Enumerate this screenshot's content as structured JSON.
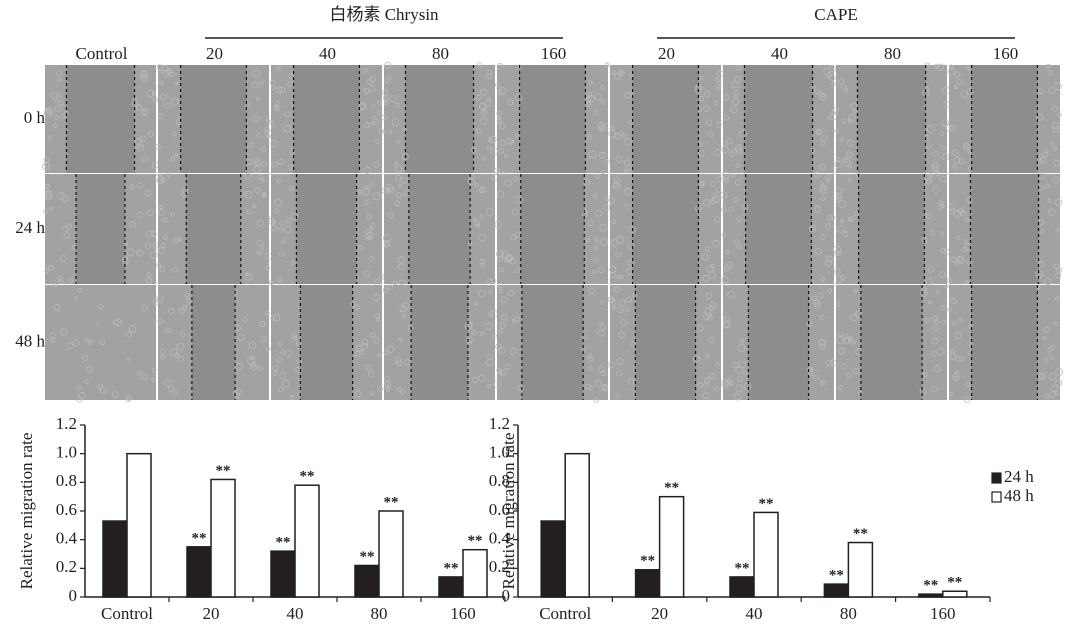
{
  "image_grid": {
    "group_labels": [
      "白杨素 Chrysin",
      "CAPE"
    ],
    "column_labels": [
      "Control",
      "20",
      "40",
      "80",
      "160",
      "20",
      "40",
      "80",
      "160"
    ],
    "row_labels": [
      "0 h",
      "24 h",
      "48 h"
    ]
  },
  "chart_data": [
    {
      "type": "bar",
      "ylabel": "Relative migration rate",
      "categories": [
        "Control",
        "20",
        "40",
        "80",
        "160"
      ],
      "series": [
        {
          "color": "#231f20",
          "values": [
            0.53,
            0.35,
            0.32,
            0.22,
            0.14
          ],
          "significance": [
            null,
            "**",
            "**",
            "**",
            "**"
          ]
        },
        {
          "color": "#ffffff",
          "values": [
            1.0,
            0.82,
            0.78,
            0.6,
            0.33
          ],
          "significance": [
            null,
            "**",
            "**",
            "**",
            "**"
          ]
        }
      ],
      "ylim": [
        0,
        1.2
      ],
      "yticks": [
        0,
        0.2,
        0.4,
        0.6,
        0.8,
        {
          "value": 1,
          "label": "1.0"
        },
        1.2
      ]
    },
    {
      "type": "bar",
      "ylabel": "Relative migration rate",
      "categories": [
        "Control",
        "20",
        "40",
        "80",
        "160"
      ],
      "series": [
        {
          "name": "24 h",
          "color": "#231f20",
          "values": [
            0.53,
            0.19,
            0.14,
            0.09,
            0.02
          ],
          "significance": [
            null,
            "**",
            "**",
            "**",
            "**"
          ]
        },
        {
          "name": "48 h",
          "color": "#ffffff",
          "values": [
            1.0,
            0.7,
            0.59,
            0.38,
            0.04
          ],
          "significance": [
            null,
            "**",
            "**",
            "**",
            "**"
          ]
        }
      ],
      "ylim": [
        0,
        1.2
      ],
      "yticks": [
        0,
        0.2,
        0.4,
        0.6,
        0.8,
        {
          "value": 1,
          "label": "1.0"
        },
        1.2
      ],
      "legend": "right"
    }
  ]
}
